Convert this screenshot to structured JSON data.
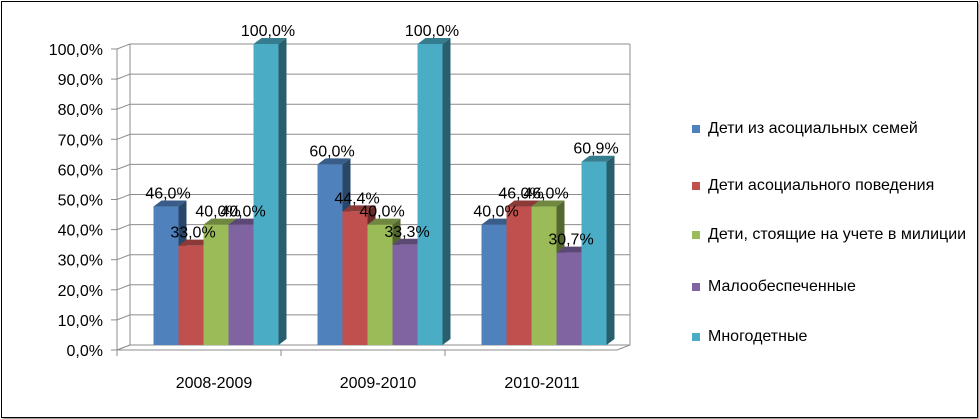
{
  "chart_data": {
    "type": "bar",
    "title": "",
    "xlabel": "",
    "ylabel": "",
    "categories": [
      "2008-2009",
      "2009-2010",
      "2010-2011"
    ],
    "ylim": [
      0,
      100
    ],
    "ytick_labels": [
      "0,0%",
      "10,0%",
      "20,0%",
      "30,0%",
      "40,0%",
      "50,0%",
      "60,0%",
      "70,0%",
      "80,0%",
      "90,0%",
      "100,0%"
    ],
    "grid": true,
    "legend_position": "right",
    "style": "3d-clustered-column",
    "series": [
      {
        "name": "Дети из асоциальных семей",
        "color": "#4f81bd",
        "values": [
          46.0,
          60.0,
          40.0
        ],
        "labels": [
          "46,0%",
          "60,0%",
          "40,0%"
        ]
      },
      {
        "name": "Дети асоциального поведения",
        "color": "#c0504d",
        "values": [
          33.0,
          44.4,
          46.0
        ],
        "labels": [
          "33,0%",
          "44,4%",
          "46,0%"
        ]
      },
      {
        "name": "Дети, стоящие на учете в милиции",
        "color": "#9bbb59",
        "values": [
          40.0,
          40.0,
          46.0
        ],
        "labels": [
          "40,0%",
          "40,0%",
          "46,0%"
        ]
      },
      {
        "name": "Малообеспеченные",
        "color": "#8064a2",
        "values": [
          40.0,
          33.3,
          30.7
        ],
        "labels": [
          "40,0%",
          "33,3%",
          "30,7%"
        ]
      },
      {
        "name": "Многодетные",
        "color": "#4bacc6",
        "values": [
          100.0,
          100.0,
          60.9
        ],
        "labels": [
          "100,0%",
          "100,0%",
          "60,9%"
        ]
      }
    ]
  }
}
